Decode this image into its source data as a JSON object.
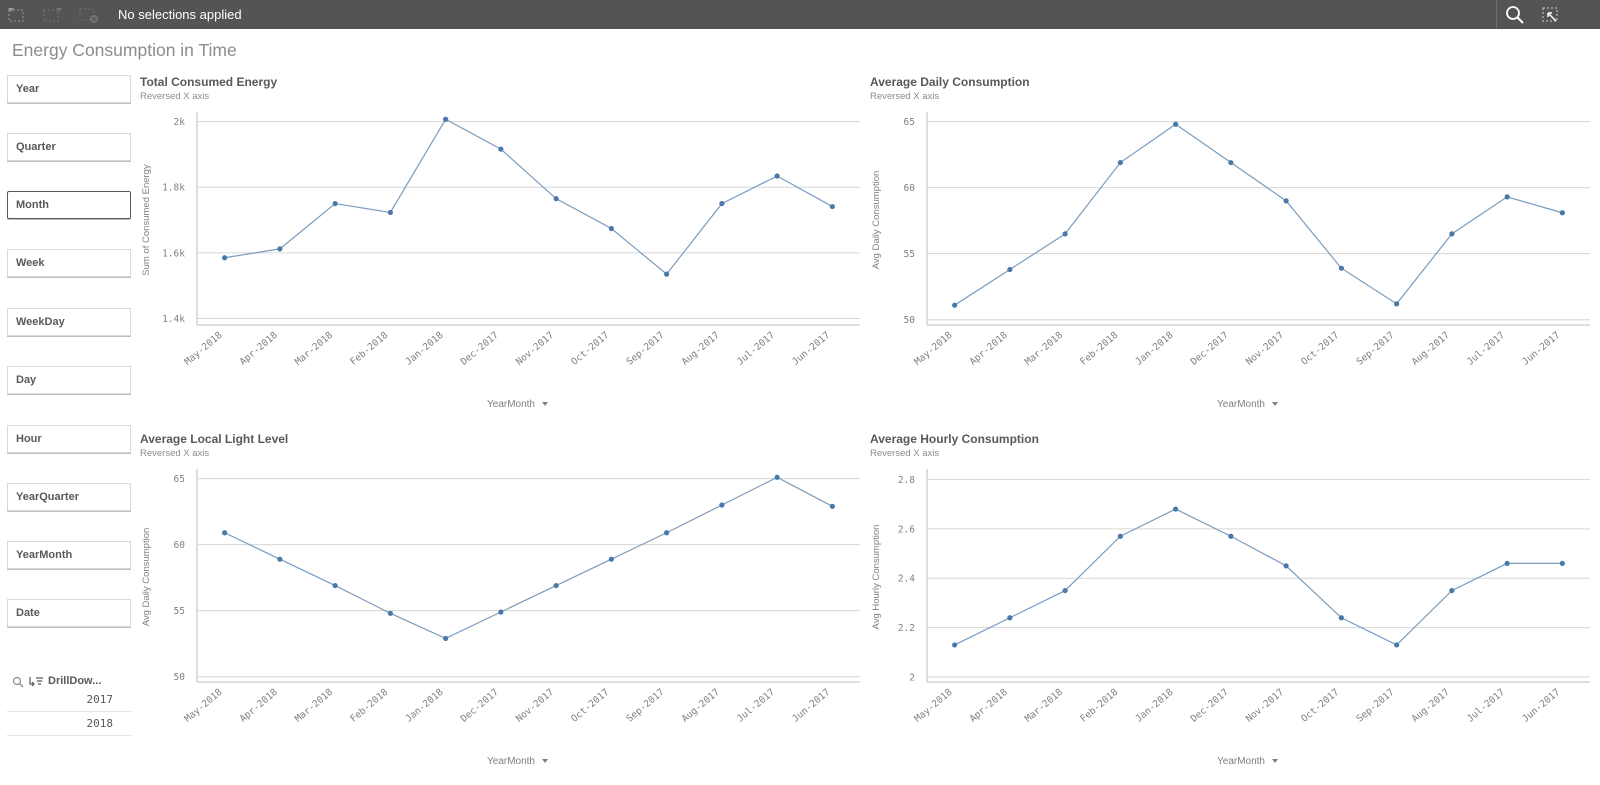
{
  "toolbar": {
    "selections_text": "No selections applied",
    "icons": [
      "selections-back-icon",
      "selections-forward-icon",
      "clear-selections-icon",
      "search-icon",
      "smart-search-toggle-icon"
    ]
  },
  "page": {
    "title": "Energy Consumption in Time"
  },
  "filters": [
    {
      "label": "Year"
    },
    {
      "label": "Quarter"
    },
    {
      "label": "Month",
      "active": true
    },
    {
      "label": "Week"
    },
    {
      "label": "WeekDay"
    },
    {
      "label": "Day"
    },
    {
      "label": "Hour"
    },
    {
      "label": "YearQuarter"
    },
    {
      "label": "YearMonth"
    },
    {
      "label": "Date"
    }
  ],
  "drilldown": {
    "label": "DrillDow...",
    "values": [
      "2017",
      "2018"
    ]
  },
  "colors": {
    "line": "#7a9cbd",
    "point": "#4a78a8",
    "toolbar": "#545454",
    "grid": "#d6d6d6"
  },
  "chart_data": [
    {
      "type": "line",
      "title": "Total Consumed Energy",
      "subtitle": "Reversed X axis",
      "xlabel": "YearMonth",
      "ylabel": "Sum of Consumed Energy",
      "categories": [
        "May-2018",
        "Apr-2018",
        "Mar-2018",
        "Feb-2018",
        "Jan-2018",
        "Dec-2017",
        "Nov-2017",
        "Oct-2017",
        "Sep-2017",
        "Aug-2017",
        "Jul-2017",
        "Jun-2017"
      ],
      "values": [
        1585,
        1612,
        1750,
        1723,
        2007,
        1916,
        1765,
        1674,
        1535,
        1750,
        1834,
        1741
      ],
      "yticks": [
        1400,
        1600,
        1800,
        2000
      ],
      "ytick_labels": [
        "1.4k",
        "1.6k",
        "1.8k",
        "2k"
      ],
      "ylim": [
        1380,
        2020
      ]
    },
    {
      "type": "line",
      "title": "Average Daily Consumption",
      "subtitle": "Reversed X axis",
      "xlabel": "YearMonth",
      "ylabel": "Avg Daily Consumption",
      "categories": [
        "May-2018",
        "Apr-2018",
        "Mar-2018",
        "Feb-2018",
        "Jan-2018",
        "Dec-2017",
        "Nov-2017",
        "Oct-2017",
        "Sep-2017",
        "Aug-2017",
        "Jul-2017",
        "Jun-2017"
      ],
      "values": [
        51.1,
        53.8,
        56.5,
        61.9,
        64.8,
        61.9,
        59.0,
        53.9,
        51.2,
        56.5,
        59.3,
        58.1
      ],
      "yticks": [
        50,
        55,
        60,
        65
      ],
      "ytick_labels": [
        "50",
        "55",
        "60",
        "65"
      ],
      "ylim": [
        49.6,
        65.5
      ]
    },
    {
      "type": "line",
      "title": "Average Local Light Level",
      "subtitle": "Reversed X axis",
      "xlabel": "YearMonth",
      "ylabel": "Avg Daily Consumption",
      "categories": [
        "May-2018",
        "Apr-2018",
        "Mar-2018",
        "Feb-2018",
        "Jan-2018",
        "Dec-2017",
        "Nov-2017",
        "Oct-2017",
        "Sep-2017",
        "Aug-2017",
        "Jul-2017",
        "Jun-2017"
      ],
      "values": [
        60.9,
        58.9,
        56.9,
        54.8,
        52.9,
        54.9,
        56.9,
        58.9,
        60.9,
        63.0,
        65.1,
        62.9
      ],
      "yticks": [
        50,
        55,
        60,
        65
      ],
      "ytick_labels": [
        "50",
        "55",
        "60",
        "65"
      ],
      "ylim": [
        49.6,
        65.5
      ]
    },
    {
      "type": "line",
      "title": "Average Hourly Consumption",
      "subtitle": "Reversed X axis",
      "xlabel": "YearMonth",
      "ylabel": "Avg Hourly Consumption",
      "categories": [
        "May-2018",
        "Apr-2018",
        "Mar-2018",
        "Feb-2018",
        "Jan-2018",
        "Dec-2017",
        "Nov-2017",
        "Oct-2017",
        "Sep-2017",
        "Aug-2017",
        "Jul-2017",
        "Jun-2017"
      ],
      "values": [
        2.13,
        2.24,
        2.35,
        2.57,
        2.68,
        2.57,
        2.45,
        2.24,
        2.13,
        2.35,
        2.46,
        2.46
      ],
      "yticks": [
        2.0,
        2.2,
        2.4,
        2.6,
        2.8
      ],
      "ytick_labels": [
        "2",
        "2.2",
        "2.4",
        "2.6",
        "2.8"
      ],
      "ylim": [
        1.98,
        2.83
      ]
    }
  ]
}
